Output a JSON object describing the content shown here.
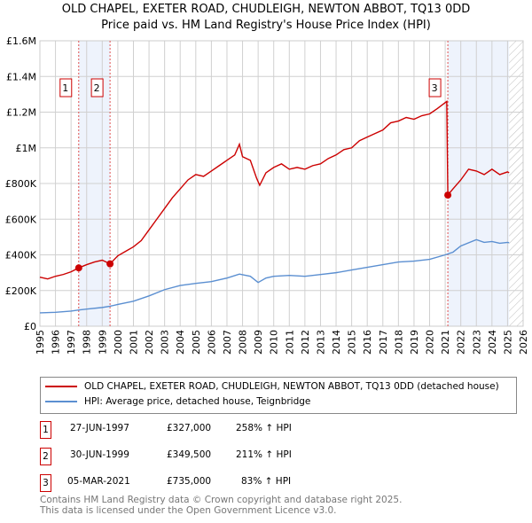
{
  "title": "OLD CHAPEL, EXETER ROAD, CHUDLEIGH, NEWTON ABBOT, TQ13 0DD",
  "subtitle": "Price paid vs. HM Land Registry's House Price Index (HPI)",
  "chart_data": {
    "type": "line",
    "xlim": [
      1995,
      2026
    ],
    "ylim": [
      0,
      1600000
    ],
    "x_ticks": [
      "1995",
      "1996",
      "1997",
      "1998",
      "1999",
      "2000",
      "2001",
      "2002",
      "2003",
      "2004",
      "2005",
      "2006",
      "2007",
      "2008",
      "2009",
      "2010",
      "2011",
      "2012",
      "2013",
      "2014",
      "2015",
      "2016",
      "2017",
      "2018",
      "2019",
      "2020",
      "2021",
      "2022",
      "2023",
      "2024",
      "2025",
      "2026"
    ],
    "y_ticks": [
      {
        "v": 0,
        "label": "£0"
      },
      {
        "v": 200000,
        "label": "£200K"
      },
      {
        "v": 400000,
        "label": "£400K"
      },
      {
        "v": 600000,
        "label": "£600K"
      },
      {
        "v": 800000,
        "label": "£800K"
      },
      {
        "v": 1000000,
        "label": "£1M"
      },
      {
        "v": 1200000,
        "label": "£1.2M"
      },
      {
        "v": 1400000,
        "label": "£1.4M"
      },
      {
        "v": 1600000,
        "label": "£1.6M"
      }
    ],
    "grid": true,
    "shaded_ranges": [
      [
        1997.49,
        1999.5
      ],
      [
        2021.17,
        2025.1
      ]
    ],
    "hatched_from": 2025.1,
    "series": [
      {
        "name": "OLD CHAPEL, EXETER ROAD, CHUDLEIGH, NEWTON ABBOT, TQ13 0DD (detached house)",
        "color": "#cc0000",
        "points": [
          [
            1995,
            275000
          ],
          [
            1995.5,
            265000
          ],
          [
            1996,
            280000
          ],
          [
            1996.5,
            290000
          ],
          [
            1997,
            305000
          ],
          [
            1997.49,
            327000
          ],
          [
            1998,
            345000
          ],
          [
            1998.5,
            360000
          ],
          [
            1999,
            370000
          ],
          [
            1999.5,
            349500
          ],
          [
            2000,
            395000
          ],
          [
            2000.5,
            420000
          ],
          [
            2001,
            445000
          ],
          [
            2001.5,
            480000
          ],
          [
            2002,
            540000
          ],
          [
            2002.5,
            600000
          ],
          [
            2003,
            660000
          ],
          [
            2003.5,
            720000
          ],
          [
            2004,
            770000
          ],
          [
            2004.5,
            820000
          ],
          [
            2005,
            850000
          ],
          [
            2005.5,
            840000
          ],
          [
            2006,
            870000
          ],
          [
            2006.5,
            900000
          ],
          [
            2007,
            930000
          ],
          [
            2007.5,
            960000
          ],
          [
            2007.8,
            1020000
          ],
          [
            2008,
            950000
          ],
          [
            2008.5,
            930000
          ],
          [
            2008.9,
            830000
          ],
          [
            2009.1,
            790000
          ],
          [
            2009.5,
            860000
          ],
          [
            2010,
            890000
          ],
          [
            2010.5,
            910000
          ],
          [
            2011,
            880000
          ],
          [
            2011.5,
            890000
          ],
          [
            2012,
            880000
          ],
          [
            2012.5,
            900000
          ],
          [
            2013,
            910000
          ],
          [
            2013.5,
            940000
          ],
          [
            2014,
            960000
          ],
          [
            2014.5,
            990000
          ],
          [
            2015,
            1000000
          ],
          [
            2015.5,
            1040000
          ],
          [
            2016,
            1060000
          ],
          [
            2016.5,
            1080000
          ],
          [
            2017,
            1100000
          ],
          [
            2017.5,
            1140000
          ],
          [
            2018,
            1150000
          ],
          [
            2018.5,
            1170000
          ],
          [
            2019,
            1160000
          ],
          [
            2019.5,
            1180000
          ],
          [
            2020,
            1190000
          ],
          [
            2020.5,
            1220000
          ],
          [
            2021.1,
            1260000
          ],
          [
            2021.17,
            735000
          ],
          [
            2021.5,
            770000
          ],
          [
            2022,
            820000
          ],
          [
            2022.5,
            880000
          ],
          [
            2023,
            870000
          ],
          [
            2023.5,
            850000
          ],
          [
            2024,
            880000
          ],
          [
            2024.5,
            850000
          ],
          [
            2025,
            865000
          ],
          [
            2025.1,
            860000
          ]
        ]
      },
      {
        "name": "HPI: Average price, detached house, Teignbridge",
        "color": "#5b8fd1",
        "points": [
          [
            1995,
            75000
          ],
          [
            1996,
            78000
          ],
          [
            1997,
            85000
          ],
          [
            1997.5,
            91000
          ],
          [
            1998,
            96000
          ],
          [
            1999,
            105000
          ],
          [
            1999.5,
            112000
          ],
          [
            2000,
            122000
          ],
          [
            2001,
            140000
          ],
          [
            2002,
            170000
          ],
          [
            2003,
            205000
          ],
          [
            2004,
            228000
          ],
          [
            2005,
            240000
          ],
          [
            2006,
            250000
          ],
          [
            2007,
            270000
          ],
          [
            2007.8,
            292000
          ],
          [
            2008.5,
            280000
          ],
          [
            2009,
            245000
          ],
          [
            2009.5,
            270000
          ],
          [
            2010,
            280000
          ],
          [
            2011,
            285000
          ],
          [
            2012,
            280000
          ],
          [
            2013,
            290000
          ],
          [
            2014,
            300000
          ],
          [
            2015,
            315000
          ],
          [
            2016,
            330000
          ],
          [
            2017,
            345000
          ],
          [
            2018,
            360000
          ],
          [
            2019,
            365000
          ],
          [
            2020,
            375000
          ],
          [
            2021,
            400000
          ],
          [
            2021.5,
            415000
          ],
          [
            2022,
            450000
          ],
          [
            2023,
            485000
          ],
          [
            2023.5,
            470000
          ],
          [
            2024,
            475000
          ],
          [
            2024.5,
            465000
          ],
          [
            2025,
            470000
          ],
          [
            2025.1,
            468000
          ]
        ]
      }
    ],
    "markers": [
      {
        "label": "1",
        "x": 1997.49,
        "y": 327000
      },
      {
        "label": "2",
        "x": 1999.5,
        "y": 349500
      },
      {
        "label": "3",
        "x": 2021.17,
        "y": 735000
      }
    ]
  },
  "legend": {
    "red": "OLD CHAPEL, EXETER ROAD, CHUDLEIGH, NEWTON ABBOT, TQ13 0DD (detached house)",
    "blue": "HPI: Average price, detached house, Teignbridge"
  },
  "transactions": [
    {
      "n": "1",
      "date": "27-JUN-1997",
      "price": "£327,000",
      "hpi": "258% ↑ HPI"
    },
    {
      "n": "2",
      "date": "30-JUN-1999",
      "price": "£349,500",
      "hpi": "211% ↑ HPI"
    },
    {
      "n": "3",
      "date": "05-MAR-2021",
      "price": "£735,000",
      "hpi": "83% ↑ HPI"
    }
  ],
  "footer": [
    "Contains HM Land Registry data © Crown copyright and database right 2025.",
    "This data is licensed under the Open Government Licence v3.0."
  ]
}
